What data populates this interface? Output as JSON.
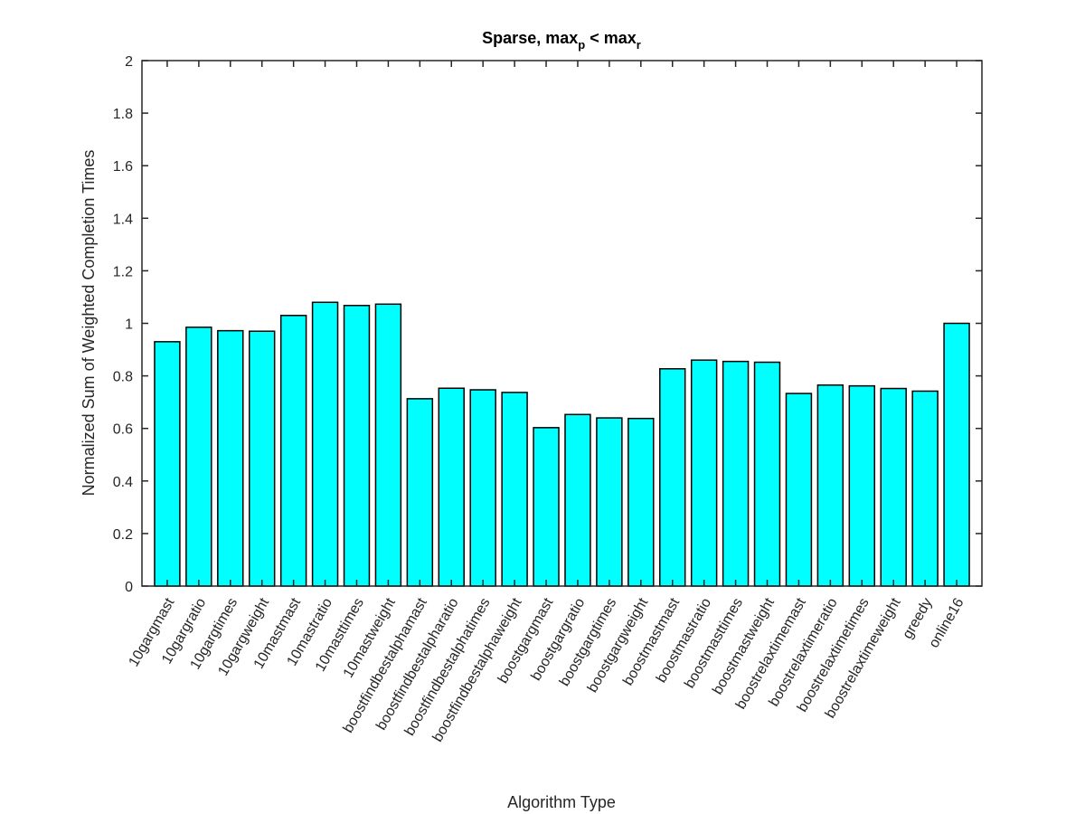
{
  "chart_data": {
    "type": "bar",
    "title_main": "Sparse, max",
    "title_sub1": "p",
    "title_mid": " < max",
    "title_sub2": "r",
    "xlabel": "Algorithm Type",
    "ylabel": "Normalized Sum of Weighted Completion Times",
    "ylim": [
      0,
      2
    ],
    "yticks": [
      "0",
      "0.2",
      "0.4",
      "0.6",
      "0.8",
      "1",
      "1.2",
      "1.4",
      "1.6",
      "1.8",
      "2"
    ],
    "grid": false,
    "bar_color": "#00FFFF",
    "categories": [
      "10gargmast",
      "10gargratio",
      "10gargtimes",
      "10gargweight",
      "10mastmast",
      "10mastratio",
      "10masttimes",
      "10mastweight",
      "boostfindbestalphamast",
      "boostfindbestalpharatio",
      "boostfindbestalphatimes",
      "boostfindbestalphaweight",
      "boostgargmast",
      "boostgargratio",
      "boostgargtimes",
      "boostgargweight",
      "boostmastmast",
      "boostmastratio",
      "boostmasttimes",
      "boostmastweight",
      "boostrelaxtimemast",
      "boostrelaxtimeratio",
      "boostrelaxtimetimes",
      "boostrelaxtimeweight",
      "greedy",
      "online16"
    ],
    "values": [
      0.93,
      0.985,
      0.972,
      0.97,
      1.03,
      1.08,
      1.068,
      1.073,
      0.713,
      0.753,
      0.747,
      0.737,
      0.603,
      0.653,
      0.64,
      0.638,
      0.827,
      0.86,
      0.855,
      0.852,
      0.733,
      0.765,
      0.762,
      0.752,
      0.742,
      1.0
    ]
  }
}
